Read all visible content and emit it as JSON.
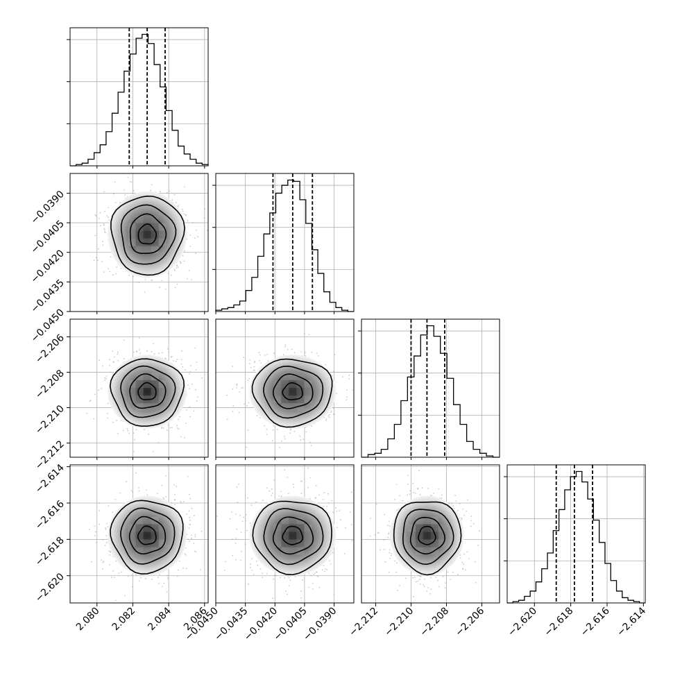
{
  "chart_data": {
    "type": "corner",
    "n_params": 4,
    "grid": true,
    "quantile_lines": "dashed",
    "contour_levels": 4,
    "params": [
      {
        "index": 0,
        "range": [
          2.0785,
          2.0862
        ],
        "median": 2.0828,
        "q16": 2.0818,
        "q84": 2.0838,
        "sigma": 0.001,
        "tick_values": [
          2.08,
          2.082,
          2.084,
          2.086
        ],
        "tick_labels": [
          "2.080",
          "2.082",
          "2.084",
          "2.086"
        ],
        "hist": [
          0.0,
          0.01,
          0.02,
          0.05,
          0.1,
          0.16,
          0.26,
          0.4,
          0.56,
          0.72,
          0.85,
          0.97,
          1.0,
          0.93,
          0.77,
          0.6,
          0.42,
          0.27,
          0.15,
          0.09,
          0.05,
          0.02,
          0.01
        ]
      },
      {
        "index": 1,
        "range": [
          -0.045,
          -0.038
        ],
        "median": -0.0411,
        "q16": -0.0421,
        "q84": -0.0401,
        "sigma": 0.001,
        "tick_values": [
          -0.045,
          -0.0435,
          -0.042,
          -0.0405,
          -0.039
        ],
        "tick_labels": [
          "−0.0450",
          "−0.0435",
          "−0.0420",
          "−0.0405",
          "−0.0390"
        ],
        "hist": [
          0.01,
          0.02,
          0.03,
          0.05,
          0.08,
          0.16,
          0.26,
          0.42,
          0.59,
          0.75,
          0.9,
          0.96,
          1.0,
          0.99,
          0.85,
          0.67,
          0.47,
          0.29,
          0.15,
          0.07,
          0.03,
          0.01,
          0.0
        ]
      },
      {
        "index": 2,
        "range": [
          -2.2128,
          -2.205
        ],
        "median": -2.2091,
        "q16": -2.21,
        "q84": -2.2081,
        "sigma": 0.00095,
        "tick_values": [
          -2.212,
          -2.21,
          -2.208,
          -2.206
        ],
        "tick_labels": [
          "−2.212",
          "−2.210",
          "−2.208",
          "−2.206"
        ],
        "hist": [
          0.0,
          0.02,
          0.03,
          0.06,
          0.14,
          0.25,
          0.43,
          0.61,
          0.77,
          0.93,
          1.0,
          0.92,
          0.79,
          0.6,
          0.4,
          0.25,
          0.12,
          0.06,
          0.03,
          0.01,
          0.0
        ]
      },
      {
        "index": 3,
        "range": [
          -2.6215,
          -2.6139
        ],
        "median": -2.6178,
        "q16": -2.6188,
        "q84": -2.6168,
        "sigma": 0.001,
        "tick_values": [
          -2.62,
          -2.618,
          -2.616,
          -2.614
        ],
        "tick_labels": [
          "−2.620",
          "−2.618",
          "−2.616",
          "−2.614"
        ],
        "hist": [
          0.0,
          0.01,
          0.02,
          0.05,
          0.09,
          0.16,
          0.26,
          0.38,
          0.55,
          0.71,
          0.86,
          0.96,
          1.0,
          0.92,
          0.79,
          0.63,
          0.46,
          0.3,
          0.17,
          0.09,
          0.04,
          0.02,
          0.01,
          0.0
        ]
      }
    ]
  }
}
